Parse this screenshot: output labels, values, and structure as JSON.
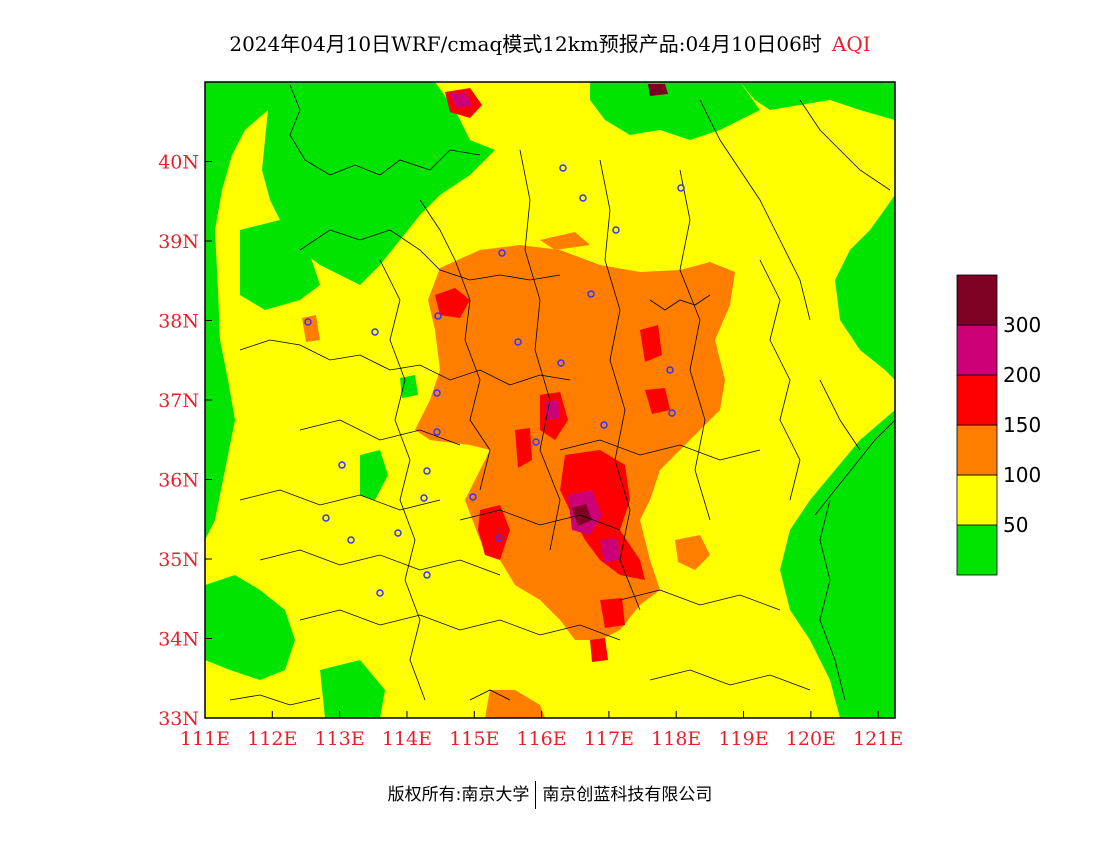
{
  "title": {
    "main": "2024年04月10日WRF/cmaq模式12km预报产品:04月10日06时",
    "tag": "AQI"
  },
  "map": {
    "lon_labels": [
      "111E",
      "112E",
      "113E",
      "114E",
      "115E",
      "116E",
      "117E",
      "118E",
      "119E",
      "120E",
      "121E"
    ],
    "lat_labels": [
      "33N",
      "34N",
      "35N",
      "36N",
      "37N",
      "38N",
      "39N",
      "40N"
    ],
    "lon_range": [
      111,
      121.25
    ],
    "lat_range": [
      33,
      41
    ],
    "label_color": "#e8202a"
  },
  "legend": {
    "bins": [
      {
        "label": "50",
        "color": "#00e400"
      },
      {
        "label": "100",
        "color": "#ffff00"
      },
      {
        "label": "150",
        "color": "#ff7e00"
      },
      {
        "label": "200",
        "color": "#ff0000"
      },
      {
        "label": "300",
        "color": "#cc0077"
      },
      {
        "label": "",
        "color": "#7e0023"
      }
    ]
  },
  "colors": {
    "good": "#00e400",
    "moderate": "#ffff00",
    "usg": "#ff7e00",
    "unhealthy": "#ff0000",
    "very_unhealthy": "#cc0077",
    "hazardous": "#7e0023",
    "station_marker": "#3333ff"
  },
  "footer": {
    "left": "版权所有:南京大学",
    "right": "南京创蓝科技有限公司"
  }
}
